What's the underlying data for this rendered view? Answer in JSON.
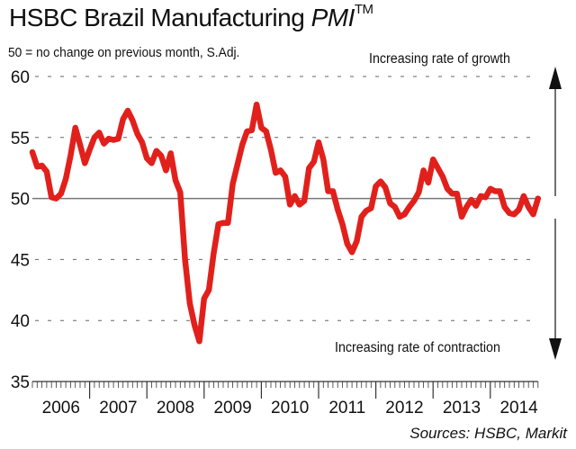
{
  "chart_data": {
    "type": "line",
    "title": "HSBC Brazil Manufacturing",
    "title_italic": "PMI",
    "title_mark": "TM",
    "subtitle": "50 = no change on previous month, S.Adj.",
    "annotation_top": "Increasing rate of growth",
    "annotation_bottom": "Increasing rate of contraction",
    "source": "Sources: HSBC, Markit",
    "xlabel": "",
    "ylabel": "",
    "ylim": [
      35,
      60
    ],
    "yticks": [
      35,
      40,
      45,
      50,
      55,
      60
    ],
    "ytick_labels": [
      "35",
      "40",
      "45",
      "50",
      "55",
      "60"
    ],
    "reference_line": 50,
    "grid": "dashed horizontal",
    "x_start": "2006-01",
    "x_end_year": 2014,
    "year_labels": [
      "2006",
      "2007",
      "2008",
      "2009",
      "2010",
      "2011",
      "2012",
      "2013",
      "2014"
    ],
    "series": [
      {
        "name": "PMI",
        "color": "#e1201c",
        "values": [
          53.8,
          52.6,
          52.7,
          52.2,
          50.1,
          50.0,
          50.4,
          51.6,
          53.5,
          55.8,
          54.4,
          52.9,
          54.0,
          55.0,
          55.4,
          54.5,
          54.9,
          54.8,
          54.9,
          56.5,
          57.2,
          56.4,
          55.3,
          54.6,
          53.3,
          52.9,
          53.9,
          53.5,
          52.3,
          53.7,
          51.5,
          50.5,
          45.0,
          41.4,
          39.6,
          38.3,
          41.8,
          42.5,
          45.5,
          47.9,
          48.0,
          48.0,
          51.2,
          52.8,
          54.4,
          55.5,
          55.6,
          57.7,
          55.8,
          55.5,
          54.0,
          52.1,
          52.3,
          51.8,
          49.5,
          50.2,
          49.5,
          49.8,
          52.5,
          53.0,
          54.6,
          53.2,
          50.6,
          50.6,
          49.1,
          47.9,
          46.3,
          45.6,
          46.5,
          48.5,
          49.0,
          49.2,
          51.0,
          51.4,
          50.9,
          49.6,
          49.3,
          48.5,
          48.7,
          49.3,
          49.8,
          50.5,
          52.3,
          51.3,
          53.2,
          52.5,
          51.8,
          50.8,
          50.4,
          50.4,
          48.5,
          49.3,
          49.9,
          49.4,
          50.2,
          50.1,
          50.8,
          50.6,
          50.6,
          49.3,
          48.8,
          48.7,
          49.1,
          50.2,
          49.3,
          48.7,
          50.0
        ]
      }
    ]
  }
}
